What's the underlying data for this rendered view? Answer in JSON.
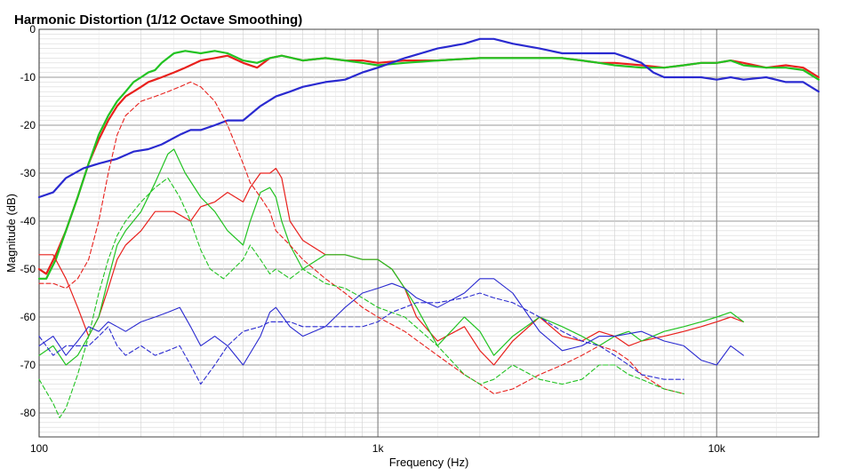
{
  "chart_data": {
    "type": "line",
    "title": "Harmonic Distortion (1/12 Octave Smoothing)",
    "xlabel": "Frequency (Hz)",
    "ylabel": "Magnitude (dB)",
    "xscale": "log",
    "xlim": [
      100,
      20000
    ],
    "ylim": [
      -85,
      0
    ],
    "grid": true,
    "x_tick_labels": [
      {
        "value": 100,
        "label": "100"
      },
      {
        "value": 1000,
        "label": "1k"
      },
      {
        "value": 10000,
        "label": "10k"
      }
    ],
    "y_tick_labels": [
      {
        "value": 0,
        "label": "0"
      },
      {
        "value": -10,
        "label": "-10"
      },
      {
        "value": -20,
        "label": "-20"
      },
      {
        "value": -30,
        "label": "-30"
      },
      {
        "value": -40,
        "label": "-40"
      },
      {
        "value": -50,
        "label": "-50"
      },
      {
        "value": -60,
        "label": "-60"
      },
      {
        "value": -70,
        "label": "-70"
      },
      {
        "value": -80,
        "label": "-80"
      }
    ],
    "series": [
      {
        "color": "#e8201c",
        "style": "solid",
        "width": 2.2,
        "x": [
          100,
          105,
          112,
          120,
          130,
          140,
          150,
          160,
          170,
          180,
          190,
          200,
          210,
          220,
          230,
          250,
          270,
          300,
          330,
          360,
          400,
          440,
          480,
          520,
          560,
          600,
          700,
          800,
          900,
          1000,
          1200,
          1500,
          2000,
          2500,
          3000,
          3500,
          4000,
          4500,
          5000,
          6000,
          7000,
          8000,
          9000,
          10000,
          11000,
          12000,
          14000,
          16000,
          18000,
          20000
        ],
        "y": [
          -50,
          -51,
          -47,
          -42,
          -35,
          -28,
          -23,
          -19,
          -16,
          -14,
          -13,
          -12,
          -11,
          -10.5,
          -10,
          -9,
          -8,
          -6.5,
          -6,
          -5.5,
          -7,
          -8,
          -6,
          -5.5,
          -6,
          -6.5,
          -6,
          -6.5,
          -6.5,
          -7,
          -6.5,
          -6.5,
          -6,
          -6,
          -6,
          -6,
          -6.5,
          -7,
          -7,
          -7.5,
          -8,
          -7.5,
          -7,
          -7,
          -6.5,
          -7,
          -8,
          -7.5,
          -8,
          -10
        ]
      },
      {
        "color": "#22c322",
        "style": "solid",
        "width": 2.2,
        "x": [
          100,
          105,
          112,
          120,
          130,
          140,
          150,
          160,
          170,
          180,
          190,
          200,
          210,
          220,
          230,
          250,
          270,
          300,
          330,
          360,
          400,
          440,
          480,
          520,
          560,
          600,
          700,
          800,
          900,
          1000,
          1200,
          1500,
          2000,
          2500,
          3000,
          3500,
          4000,
          4500,
          5000,
          6000,
          7000,
          8000,
          9000,
          10000,
          11000,
          12000,
          14000,
          16000,
          18000,
          20000
        ],
        "y": [
          -52,
          -52,
          -48,
          -42,
          -35,
          -28,
          -22,
          -18,
          -15,
          -13,
          -11,
          -10,
          -9,
          -8.5,
          -7,
          -5,
          -4.5,
          -5,
          -4.5,
          -5,
          -6.5,
          -7,
          -6,
          -5.5,
          -6,
          -6.5,
          -6,
          -6.5,
          -7,
          -7.5,
          -7,
          -6.5,
          -6,
          -6,
          -6,
          -6,
          -6.5,
          -7,
          -7.5,
          -8,
          -8,
          -7.5,
          -7,
          -7,
          -6.5,
          -7.5,
          -8,
          -8,
          -8.5,
          -10.5
        ]
      },
      {
        "color": "#2a2ad0",
        "style": "solid",
        "width": 2.2,
        "x": [
          100,
          110,
          120,
          135,
          150,
          170,
          190,
          210,
          230,
          260,
          280,
          300,
          330,
          360,
          400,
          450,
          500,
          550,
          600,
          700,
          800,
          900,
          1000,
          1200,
          1500,
          1800,
          2000,
          2200,
          2500,
          3000,
          3500,
          4000,
          4500,
          5000,
          5500,
          6000,
          6500,
          7000,
          8000,
          9000,
          10000,
          11000,
          12000,
          14000,
          16000,
          18000,
          20000
        ],
        "y": [
          -35,
          -34,
          -31,
          -29,
          -28,
          -27,
          -25.5,
          -25,
          -24,
          -22,
          -21,
          -21,
          -20,
          -19,
          -19,
          -16,
          -14,
          -13,
          -12,
          -11,
          -10.5,
          -9,
          -8,
          -6,
          -4,
          -3,
          -2,
          -2,
          -3,
          -4,
          -5,
          -5,
          -5,
          -5,
          -6,
          -7,
          -9,
          -10,
          -10,
          -10,
          -10.5,
          -10,
          -10.5,
          -10,
          -11,
          -11,
          -13
        ]
      },
      {
        "color": "#e8201c",
        "style": "solid",
        "width": 1.2,
        "x": [
          100,
          110,
          120,
          130,
          140,
          150,
          160,
          170,
          180,
          200,
          220,
          250,
          280,
          300,
          330,
          360,
          400,
          420,
          450,
          480,
          500,
          520,
          550,
          600,
          700,
          800,
          900,
          1000,
          1100,
          1200,
          1300,
          1500,
          1800,
          2000,
          2200,
          2500,
          3000,
          3500,
          4000,
          4500,
          5000,
          5500,
          6000,
          7000,
          8000,
          9000,
          10000,
          11000,
          12000
        ],
        "y": [
          -47,
          -47,
          -52,
          -58,
          -64,
          -60,
          -54,
          -48,
          -45,
          -42,
          -38,
          -38,
          -40,
          -37,
          -36,
          -34,
          -36,
          -33,
          -30,
          -30,
          -29,
          -31,
          -40,
          -44,
          -47,
          -47,
          -48,
          -48,
          -50,
          -54,
          -60,
          -65,
          -62,
          -67,
          -70,
          -65,
          -60,
          -64,
          -65,
          -63,
          -64,
          -66,
          -65,
          -64,
          -63,
          -62,
          -61,
          -60,
          -61
        ]
      },
      {
        "color": "#22c322",
        "style": "solid",
        "width": 1.2,
        "x": [
          100,
          110,
          120,
          130,
          140,
          150,
          160,
          170,
          180,
          200,
          220,
          240,
          250,
          270,
          300,
          330,
          360,
          400,
          420,
          450,
          480,
          500,
          520,
          550,
          600,
          700,
          800,
          900,
          1000,
          1100,
          1200,
          1300,
          1500,
          1800,
          2000,
          2200,
          2500,
          3000,
          3500,
          4000,
          4500,
          5000,
          5500,
          6000,
          7000,
          8000,
          9000,
          10000,
          11000,
          12000
        ],
        "y": [
          -68,
          -66,
          -70,
          -68,
          -64,
          -60,
          -52,
          -45,
          -42,
          -38,
          -32,
          -26,
          -25,
          -30,
          -35,
          -38,
          -42,
          -45,
          -40,
          -34,
          -33,
          -35,
          -40,
          -45,
          -50,
          -47,
          -47,
          -48,
          -48,
          -50,
          -54,
          -58,
          -66,
          -60,
          -63,
          -68,
          -64,
          -60,
          -62,
          -64,
          -66,
          -64,
          -63,
          -65,
          -63,
          -62,
          -61,
          -60,
          -59,
          -61
        ]
      },
      {
        "color": "#e8201c",
        "style": "dashed",
        "width": 1.1,
        "x": [
          100,
          110,
          120,
          130,
          140,
          150,
          160,
          170,
          180,
          200,
          220,
          240,
          260,
          280,
          300,
          330,
          360,
          400,
          420,
          450,
          480,
          500,
          550,
          600,
          700,
          800,
          900,
          1000,
          1200,
          1500,
          1800,
          2000,
          2200,
          2500,
          3000,
          3500,
          4000,
          4500,
          5000,
          5500,
          6000,
          7000,
          8000
        ],
        "y": [
          -53,
          -53,
          -54,
          -52,
          -48,
          -40,
          -30,
          -22,
          -18,
          -15,
          -14,
          -13,
          -12,
          -11,
          -12,
          -15,
          -20,
          -28,
          -32,
          -35,
          -38,
          -42,
          -45,
          -48,
          -52,
          -55,
          -58,
          -60,
          -63,
          -68,
          -72,
          -74,
          -76,
          -75,
          -72,
          -70,
          -68,
          -66,
          -67,
          -69,
          -72,
          -75,
          -76
        ]
      },
      {
        "color": "#22c322",
        "style": "dashed",
        "width": 1.1,
        "x": [
          100,
          110,
          115,
          120,
          130,
          140,
          150,
          160,
          170,
          180,
          200,
          220,
          240,
          260,
          280,
          300,
          320,
          350,
          400,
          420,
          450,
          480,
          500,
          550,
          600,
          700,
          800,
          900,
          1000,
          1200,
          1500,
          1800,
          2000,
          2200,
          2500,
          3000,
          3500,
          4000,
          4500,
          5000,
          5500,
          6000,
          7000,
          8000
        ],
        "y": [
          -73,
          -78,
          -81,
          -79,
          -72,
          -64,
          -55,
          -48,
          -43,
          -40,
          -36,
          -33,
          -31,
          -35,
          -40,
          -46,
          -50,
          -52,
          -48,
          -45,
          -48,
          -51,
          -50,
          -52,
          -50,
          -53,
          -54,
          -56,
          -58,
          -60,
          -66,
          -72,
          -74,
          -73,
          -70,
          -73,
          -74,
          -73,
          -70,
          -70,
          -72,
          -73,
          -75,
          -76
        ]
      },
      {
        "color": "#2a2ad0",
        "style": "solid",
        "width": 1.1,
        "x": [
          100,
          110,
          120,
          130,
          140,
          150,
          160,
          170,
          180,
          200,
          220,
          240,
          260,
          280,
          300,
          330,
          360,
          400,
          450,
          480,
          500,
          550,
          600,
          700,
          800,
          900,
          1000,
          1100,
          1200,
          1300,
          1500,
          1800,
          2000,
          2200,
          2500,
          3000,
          3500,
          4000,
          4500,
          5000,
          6000,
          7000,
          8000,
          9000,
          10000,
          11000,
          12000
        ],
        "y": [
          -66,
          -64,
          -68,
          -65,
          -62,
          -63,
          -61,
          -62,
          -63,
          -61,
          -60,
          -59,
          -58,
          -62,
          -66,
          -64,
          -66,
          -70,
          -64,
          -59,
          -58,
          -62,
          -64,
          -62,
          -58,
          -55,
          -54,
          -53,
          -54,
          -56,
          -58,
          -55,
          -52,
          -52,
          -55,
          -63,
          -67,
          -66,
          -64,
          -64,
          -63,
          -65,
          -66,
          -69,
          -70,
          -66,
          -68
        ]
      },
      {
        "color": "#2a2ad0",
        "style": "dashed",
        "width": 1.1,
        "x": [
          100,
          110,
          120,
          130,
          140,
          150,
          160,
          170,
          180,
          200,
          220,
          240,
          260,
          280,
          300,
          330,
          360,
          400,
          450,
          480,
          500,
          550,
          600,
          700,
          800,
          900,
          1000,
          1100,
          1200,
          1300,
          1500,
          1800,
          2000,
          2200,
          2500,
          3000,
          3500,
          4000,
          4500,
          5000,
          5500,
          6000,
          7000,
          8000
        ],
        "y": [
          -64,
          -68,
          -66,
          -66,
          -66,
          -64,
          -62,
          -66,
          -68,
          -66,
          -68,
          -67,
          -66,
          -70,
          -74,
          -70,
          -66,
          -63,
          -62,
          -61,
          -61,
          -61,
          -62,
          -62,
          -62,
          -62,
          -61,
          -59,
          -58,
          -57,
          -57,
          -56,
          -55,
          -56,
          -57,
          -60,
          -63,
          -65,
          -66,
          -68,
          -70,
          -72,
          -73,
          -73
        ]
      }
    ]
  }
}
